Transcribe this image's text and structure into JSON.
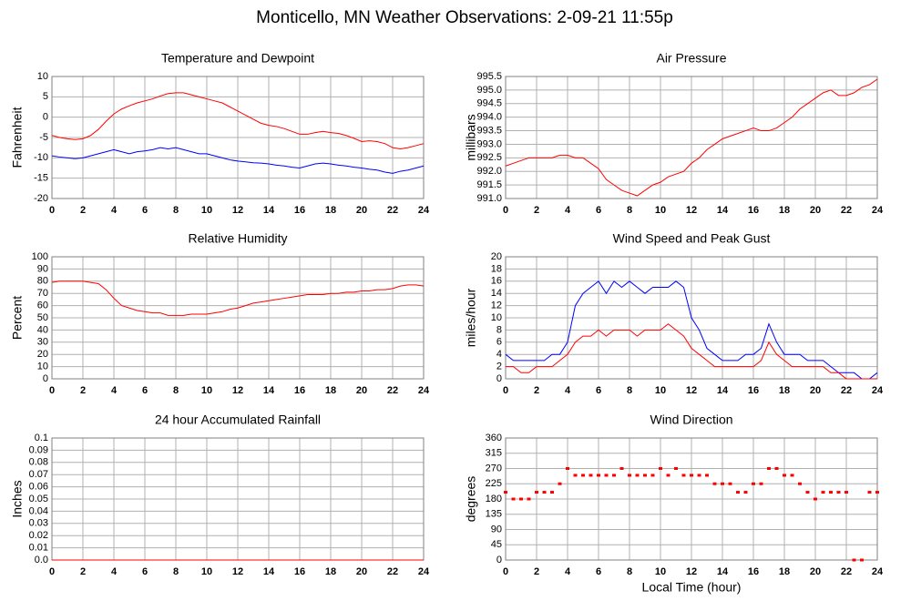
{
  "title": "Monticello, MN Weather Observations: 2-09-21 11:55p",
  "chart_data": [
    {
      "type": "line",
      "title": "Temperature and Dewpoint",
      "ylabel": "Fahrenheit",
      "x": [
        0,
        0.5,
        1,
        1.5,
        2,
        2.5,
        3,
        3.5,
        4,
        4.5,
        5,
        5.5,
        6,
        6.5,
        7,
        7.5,
        8,
        8.5,
        9,
        9.5,
        10,
        10.5,
        11,
        11.5,
        12,
        12.5,
        13,
        13.5,
        14,
        14.5,
        15,
        15.5,
        16,
        16.5,
        17,
        17.5,
        18,
        18.5,
        19,
        19.5,
        20,
        20.5,
        21,
        21.5,
        22,
        22.5,
        23,
        23.5,
        24
      ],
      "series": [
        {
          "color": "#ff0000",
          "values": [
            -4.5,
            -5,
            -5.3,
            -5.5,
            -5.3,
            -4.5,
            -3,
            -1,
            0.8,
            2,
            2.8,
            3.5,
            4,
            4.5,
            5.2,
            5.8,
            6,
            6,
            5.5,
            5,
            4.5,
            4,
            3.5,
            2.5,
            1.5,
            0.5,
            -0.5,
            -1.5,
            -2,
            -2.3,
            -2.8,
            -3.5,
            -4.2,
            -4.2,
            -3.8,
            -3.5,
            -3.8,
            -4,
            -4.5,
            -5.2,
            -6,
            -5.8,
            -6,
            -6.5,
            -7.5,
            -7.8,
            -7.5,
            -7,
            -6.5
          ]
        },
        {
          "color": "#0000ff",
          "values": [
            -9.5,
            -9.8,
            -10,
            -10.2,
            -10,
            -9.5,
            -9,
            -8.5,
            -8,
            -8.5,
            -9,
            -8.5,
            -8.3,
            -8,
            -7.5,
            -7.8,
            -7.5,
            -8,
            -8.5,
            -9,
            -9,
            -9.5,
            -10,
            -10.5,
            -10.8,
            -11,
            -11.2,
            -11.3,
            -11.5,
            -11.8,
            -12,
            -12.3,
            -12.5,
            -12,
            -11.5,
            -11.3,
            -11.5,
            -11.8,
            -12,
            -12.3,
            -12.5,
            -12.8,
            -13,
            -13.5,
            -13.8,
            -13.3,
            -13,
            -12.5,
            -12
          ]
        }
      ],
      "xlim": [
        0,
        24
      ],
      "xticks": [
        0,
        2,
        4,
        6,
        8,
        10,
        12,
        14,
        16,
        18,
        20,
        22,
        24
      ],
      "ylim": [
        -20,
        10
      ],
      "yticks": [
        -20,
        -15,
        -10,
        -5,
        0,
        5,
        10
      ],
      "grid": true
    },
    {
      "type": "line",
      "title": "Air Pressure",
      "ylabel": "millibars",
      "x": [
        0,
        0.5,
        1,
        1.5,
        2,
        2.5,
        3,
        3.5,
        4,
        4.5,
        5,
        5.5,
        6,
        6.5,
        7,
        7.5,
        8,
        8.5,
        9,
        9.5,
        10,
        10.5,
        11,
        11.5,
        12,
        12.5,
        13,
        13.5,
        14,
        14.5,
        15,
        15.5,
        16,
        16.5,
        17,
        17.5,
        18,
        18.5,
        19,
        19.5,
        20,
        20.5,
        21,
        21.5,
        22,
        22.5,
        23,
        23.5,
        24
      ],
      "series": [
        {
          "color": "#ff0000",
          "values": [
            992.2,
            992.3,
            992.4,
            992.5,
            992.5,
            992.5,
            992.5,
            992.6,
            992.6,
            992.5,
            992.5,
            992.3,
            992.1,
            991.7,
            991.5,
            991.3,
            991.2,
            991.1,
            991.3,
            991.5,
            991.6,
            991.8,
            991.9,
            992.0,
            992.3,
            992.5,
            992.8,
            993.0,
            993.2,
            993.3,
            993.4,
            993.5,
            993.6,
            993.5,
            993.5,
            993.6,
            993.8,
            994.0,
            994.3,
            994.5,
            994.7,
            994.9,
            995.0,
            994.8,
            994.8,
            994.9,
            995.1,
            995.2,
            995.4
          ]
        }
      ],
      "xlim": [
        0,
        24
      ],
      "xticks": [
        0,
        2,
        4,
        6,
        8,
        10,
        12,
        14,
        16,
        18,
        20,
        22,
        24
      ],
      "ylim": [
        991,
        995.5
      ],
      "yticks": [
        {
          "value": 991,
          "label": "991.0"
        },
        991.5,
        {
          "value": 992,
          "label": "992.0"
        },
        992.5,
        {
          "value": 993,
          "label": "993.0"
        },
        993.5,
        {
          "value": 994,
          "label": "994.0"
        },
        994.5,
        {
          "value": 995,
          "label": "995.0"
        },
        995.5
      ],
      "grid": true
    },
    {
      "type": "line",
      "title": "Relative Humidity",
      "ylabel": "Percent",
      "x": [
        0,
        0.5,
        1,
        1.5,
        2,
        2.5,
        3,
        3.5,
        4,
        4.5,
        5,
        5.5,
        6,
        6.5,
        7,
        7.5,
        8,
        8.5,
        9,
        9.5,
        10,
        10.5,
        11,
        11.5,
        12,
        12.5,
        13,
        13.5,
        14,
        14.5,
        15,
        15.5,
        16,
        16.5,
        17,
        17.5,
        18,
        18.5,
        19,
        19.5,
        20,
        20.5,
        21,
        21.5,
        22,
        22.5,
        23,
        23.5,
        24
      ],
      "series": [
        {
          "color": "#ff0000",
          "values": [
            79,
            80,
            80,
            80,
            80,
            79,
            78,
            73,
            66,
            60,
            58,
            56,
            55,
            54,
            54,
            52,
            52,
            52,
            53,
            53,
            53,
            54,
            55,
            57,
            58,
            60,
            62,
            63,
            64,
            65,
            66,
            67,
            68,
            69,
            69,
            69,
            70,
            70,
            71,
            71,
            72,
            72,
            73,
            73,
            74,
            76,
            77,
            77,
            76
          ]
        }
      ],
      "xlim": [
        0,
        24
      ],
      "xticks": [
        0,
        2,
        4,
        6,
        8,
        10,
        12,
        14,
        16,
        18,
        20,
        22,
        24
      ],
      "ylim": [
        0,
        100
      ],
      "yticks": [
        0,
        10,
        20,
        30,
        40,
        50,
        60,
        70,
        80,
        90,
        100
      ],
      "grid": true
    },
    {
      "type": "line",
      "title": "Wind Speed and Peak Gust",
      "ylabel": "miles/hour",
      "x": [
        0,
        0.5,
        1,
        1.5,
        2,
        2.5,
        3,
        3.5,
        4,
        4.5,
        5,
        5.5,
        6,
        6.5,
        7,
        7.5,
        8,
        8.5,
        9,
        9.5,
        10,
        10.5,
        11,
        11.5,
        12,
        12.5,
        13,
        13.5,
        14,
        14.5,
        15,
        15.5,
        16,
        16.5,
        17,
        17.5,
        18,
        18.5,
        19,
        19.5,
        20,
        20.5,
        21,
        21.5,
        22,
        22.5,
        23,
        23.5,
        24
      ],
      "series": [
        {
          "color": "#0000ff",
          "values": [
            4,
            3,
            3,
            3,
            3,
            3,
            4,
            4,
            6,
            12,
            14,
            15,
            16,
            14,
            16,
            15,
            16,
            15,
            14,
            15,
            15,
            15,
            16,
            15,
            10,
            8,
            5,
            4,
            3,
            3,
            3,
            4,
            4,
            5,
            9,
            6,
            4,
            4,
            4,
            3,
            3,
            3,
            2,
            1,
            1,
            1,
            0,
            0,
            1
          ]
        },
        {
          "color": "#ff0000",
          "values": [
            2,
            2,
            1,
            1,
            2,
            2,
            2,
            3,
            4,
            6,
            7,
            7,
            8,
            7,
            8,
            8,
            8,
            7,
            8,
            8,
            8,
            9,
            8,
            7,
            5,
            4,
            3,
            2,
            2,
            2,
            2,
            2,
            2,
            3,
            6,
            4,
            3,
            2,
            2,
            2,
            2,
            2,
            1,
            1,
            0,
            0,
            0,
            0,
            0
          ]
        }
      ],
      "xlim": [
        0,
        24
      ],
      "xticks": [
        0,
        2,
        4,
        6,
        8,
        10,
        12,
        14,
        16,
        18,
        20,
        22,
        24
      ],
      "ylim": [
        0,
        20
      ],
      "yticks": [
        0,
        2,
        4,
        6,
        8,
        10,
        12,
        14,
        16,
        18,
        20
      ],
      "grid": true
    },
    {
      "type": "line",
      "title": "24 hour Accumulated Rainfall",
      "ylabel": "Inches",
      "x": [
        0,
        24
      ],
      "series": [
        {
          "color": "#ff0000",
          "values": [
            0,
            0
          ]
        }
      ],
      "xlim": [
        0,
        24
      ],
      "xticks": [
        0,
        2,
        4,
        6,
        8,
        10,
        12,
        14,
        16,
        18,
        20,
        22,
        24
      ],
      "ylim": [
        0,
        0.1
      ],
      "yticks": [
        {
          "value": 0,
          "label": "0.0"
        },
        0.01,
        0.02,
        0.03,
        0.04,
        0.05,
        0.06,
        0.07,
        0.08,
        0.09,
        0.1
      ],
      "grid": true
    },
    {
      "type": "scatter",
      "title": "Wind Direction",
      "ylabel": "degrees",
      "xlabel": "Local Time (hour)",
      "x": [
        0,
        0.5,
        1,
        1.5,
        2,
        2.5,
        3,
        3.5,
        4,
        4.5,
        5,
        5.5,
        6,
        6.5,
        7,
        7.5,
        8,
        8.5,
        9,
        9.5,
        10,
        10.5,
        11,
        11.5,
        12,
        12.5,
        13,
        13.5,
        14,
        14.5,
        15,
        15.5,
        16,
        16.5,
        17,
        17.5,
        18,
        18.5,
        19,
        19.5,
        20,
        20.5,
        21,
        21.5,
        22,
        22.5,
        23,
        23.5,
        24
      ],
      "series": [
        {
          "color": "#ff0000",
          "values": [
            200,
            180,
            180,
            180,
            200,
            200,
            200,
            225,
            270,
            250,
            250,
            250,
            250,
            250,
            250,
            270,
            250,
            250,
            250,
            250,
            270,
            250,
            270,
            250,
            250,
            250,
            250,
            225,
            225,
            225,
            200,
            200,
            225,
            225,
            270,
            270,
            250,
            250,
            225,
            200,
            180,
            200,
            200,
            200,
            200,
            0,
            0,
            200,
            200
          ]
        }
      ],
      "xlim": [
        0,
        24
      ],
      "xticks": [
        0,
        2,
        4,
        6,
        8,
        10,
        12,
        14,
        16,
        18,
        20,
        22,
        24
      ],
      "ylim": [
        0,
        360
      ],
      "yticks": [
        0,
        45,
        90,
        135,
        180,
        225,
        270,
        315,
        360
      ],
      "grid": true
    }
  ]
}
